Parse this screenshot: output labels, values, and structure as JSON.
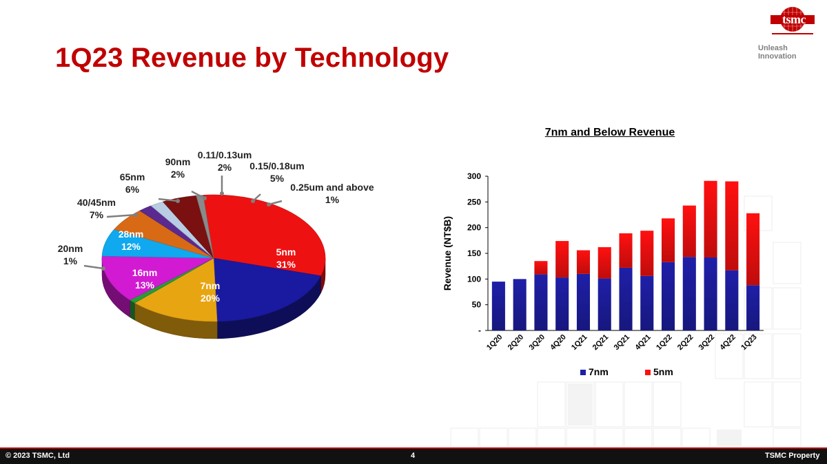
{
  "slide": {
    "title": "1Q23 Revenue by Technology",
    "brand": "tsmc",
    "tagline": "Unleash Innovation",
    "footer_left": "© 2023 TSMC, Ltd",
    "footer_page": "4",
    "footer_right": "TSMC Property"
  },
  "colors": {
    "title_red": "#c00000",
    "blue_7nm": "#1f1fa8",
    "red_5nm": "#ff1010"
  },
  "chart_data": [
    {
      "type": "pie",
      "title": "",
      "slices": [
        {
          "label": "5nm",
          "value": 31,
          "display": "31%",
          "color": "#ee1111"
        },
        {
          "label": "7nm",
          "value": 20,
          "display": "20%",
          "color": "#1a1aa0"
        },
        {
          "label": "16nm",
          "value": 13,
          "display": "13%",
          "color": "#e8a512"
        },
        {
          "label": "20nm",
          "value": 1,
          "display": "1%",
          "color": "#2a9a3a"
        },
        {
          "label": "28nm",
          "value": 12,
          "display": "12%",
          "color": "#d21ad2"
        },
        {
          "label": "40/45nm",
          "value": 7,
          "display": "7%",
          "color": "#10a8ee"
        },
        {
          "label": "65nm",
          "value": 6,
          "display": "6%",
          "color": "#d86a16"
        },
        {
          "label": "90nm",
          "value": 2,
          "display": "2%",
          "color": "#5b2a90"
        },
        {
          "label": "0.11/0.13um",
          "value": 2,
          "display": "2%",
          "color": "#b8cce4"
        },
        {
          "label": "0.15/0.18um",
          "value": 5,
          "display": "5%",
          "color": "#7a1010"
        },
        {
          "label": "0.25um and above",
          "value": 1,
          "display": "1%",
          "color": "#8a8a8a"
        }
      ]
    },
    {
      "type": "bar",
      "stacked": true,
      "title": "7nm and Below Revenue",
      "ylabel": "Revenue (NT$B)",
      "xlabel": "",
      "ylim": [
        0,
        300
      ],
      "yticks": [
        {
          "value": 0,
          "label": "-"
        },
        {
          "value": 50,
          "label": "50"
        },
        {
          "value": 100,
          "label": "100"
        },
        {
          "value": 150,
          "label": "150"
        },
        {
          "value": 200,
          "label": "200"
        },
        {
          "value": 250,
          "label": "250"
        },
        {
          "value": 300,
          "label": "300"
        }
      ],
      "categories": [
        "1Q20",
        "2Q20",
        "3Q20",
        "4Q20",
        "1Q21",
        "2Q21",
        "3Q21",
        "4Q21",
        "1Q22",
        "2Q22",
        "3Q22",
        "4Q22",
        "1Q23"
      ],
      "series": [
        {
          "name": "7nm",
          "color": "#1f1fa8",
          "values": [
            95,
            100,
            109,
            103,
            110,
            101,
            122,
            106,
            133,
            143,
            142,
            117,
            88
          ]
        },
        {
          "name": "5nm",
          "color": "#ff1010",
          "values": [
            0,
            0,
            26,
            71,
            46,
            61,
            67,
            88,
            85,
            100,
            149,
            173,
            140
          ]
        }
      ],
      "legend": "bottom"
    }
  ]
}
